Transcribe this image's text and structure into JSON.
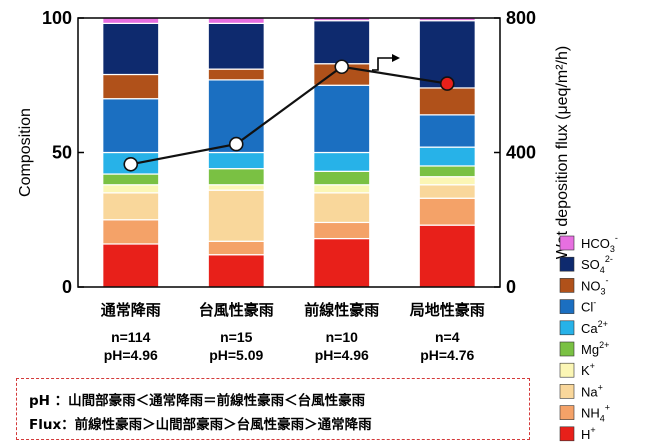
{
  "chart_data": {
    "type": "bar",
    "stacked": true,
    "categories": [
      "通常降雨",
      "台風性豪雨",
      "前線性豪雨",
      "局地性豪雨"
    ],
    "category_colors": [
      "#000000",
      "#000000",
      "#000000",
      "#e8201a"
    ],
    "stats": [
      {
        "n": "n=114",
        "ph": "pH=4.96"
      },
      {
        "n": "n=15",
        "ph": "pH=5.09"
      },
      {
        "n": "n=10",
        "ph": "pH=4.96"
      },
      {
        "n": "n=4",
        "ph": "pH=4.76"
      }
    ],
    "ylabel": "Composition",
    "ylim": [
      0,
      100
    ],
    "yticks": [
      "0",
      "50",
      "100"
    ],
    "y2label": "Wet deposition flux (μeq/m²/h)",
    "y2lim": [
      0,
      800
    ],
    "y2ticks": [
      "0",
      "400",
      "800"
    ],
    "series": [
      {
        "name": "H+",
        "label_base": "H",
        "label_sup": "+",
        "color": "#e8201a",
        "values": [
          16,
          12,
          18,
          23
        ]
      },
      {
        "name": "NH4+",
        "label_base": "NH",
        "label_sub": "4",
        "label_sup": "+",
        "color": "#f4a268",
        "values": [
          9,
          5,
          6,
          10
        ]
      },
      {
        "name": "Na+",
        "label_base": "Na",
        "label_sup": "+",
        "color": "#f9d79b",
        "values": [
          10,
          19,
          11,
          5
        ]
      },
      {
        "name": "K+",
        "label_base": "K",
        "label_sup": "+",
        "color": "#fbf6b5",
        "values": [
          3,
          2,
          3,
          3
        ]
      },
      {
        "name": "Mg2+",
        "label_base": "Mg",
        "label_sup": "2+",
        "color": "#7ac143",
        "values": [
          4,
          6,
          5,
          4
        ]
      },
      {
        "name": "Ca2+",
        "label_base": "Ca",
        "label_sup": "2+",
        "color": "#27b2e8",
        "values": [
          8,
          6,
          7,
          7
        ]
      },
      {
        "name": "Cl-",
        "label_base": "Cl",
        "label_sup": "-",
        "color": "#1b6fc1",
        "values": [
          20,
          27,
          25,
          12
        ]
      },
      {
        "name": "NO3-",
        "label_base": "NO",
        "label_sub": "3",
        "label_sup": "-",
        "color": "#b0511a",
        "values": [
          9,
          4,
          8,
          10
        ]
      },
      {
        "name": "SO42-",
        "label_base": "SO",
        "label_sub": "4",
        "label_sup": "2-",
        "color": "#0e2a6e",
        "values": [
          19,
          17,
          16,
          25
        ]
      },
      {
        "name": "HCO3-",
        "label_base": "HCO",
        "label_sub": "3",
        "label_sup": "-",
        "color": "#e76fe0",
        "values": [
          2,
          2,
          1,
          1
        ]
      }
    ],
    "flux": {
      "values": [
        365,
        425,
        655,
        605
      ],
      "marker_colors": [
        "#ffffff",
        "#ffffff",
        "#ffffff",
        "#e8201a"
      ],
      "line_color": "#111111"
    },
    "grid": false,
    "legend_position": "right"
  },
  "notes": {
    "line1": "pH ：山間部豪雨＜通常降雨＝前線性豪雨＜台風性豪雨",
    "line2": "Flux：前線性豪雨＞山間部豪雨＞台風性豪雨＞通常降雨",
    "border_color": "#d43a3a"
  }
}
